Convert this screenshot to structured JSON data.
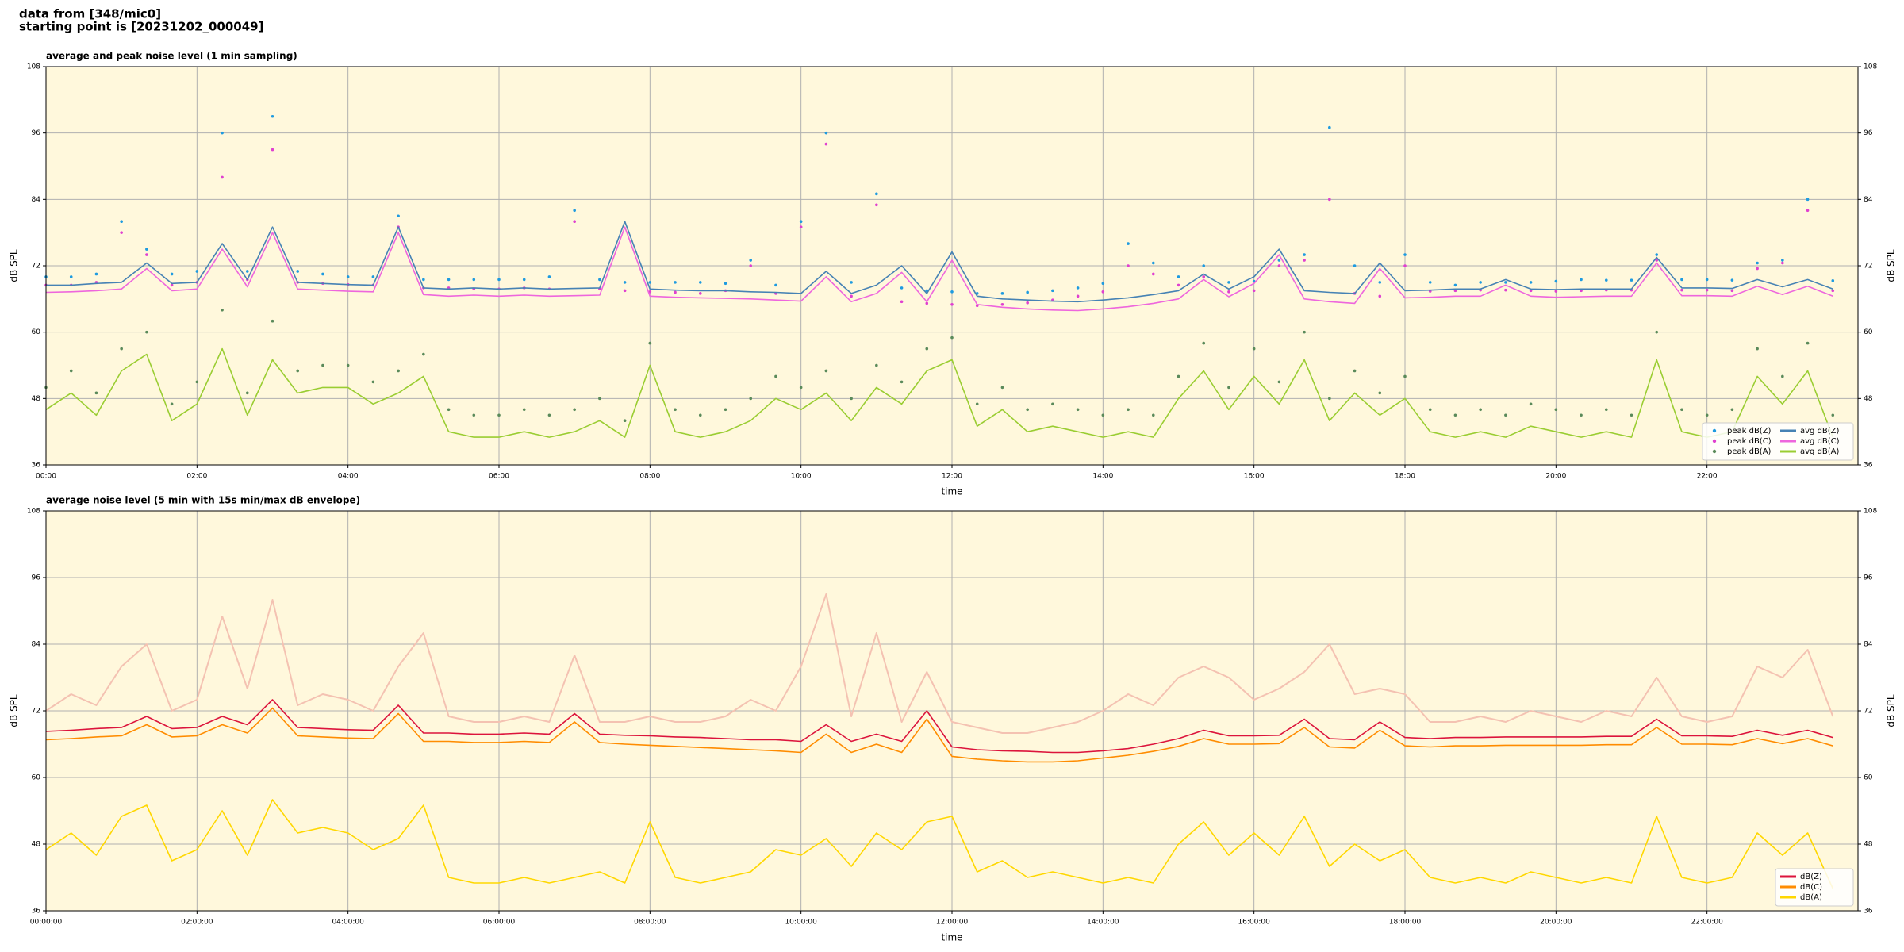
{
  "header": [
    "data from [348/mic0]",
    "starting point is [20231202_000049]"
  ],
  "chart_data": [
    {
      "type": "line",
      "title": "average and peak noise level (1 min sampling)",
      "x_label": "time",
      "y_label": "dB SPL",
      "background": "#fff8dc",
      "grid": true,
      "legend": "lower right",
      "legend_columns": 2,
      "xlim": [
        0,
        1440
      ],
      "xticks": [
        {
          "value": 0,
          "label": "00:00"
        },
        {
          "value": 120,
          "label": "02:00"
        },
        {
          "value": 240,
          "label": "04:00"
        },
        {
          "value": 360,
          "label": "06:00"
        },
        {
          "value": 480,
          "label": "08:00"
        },
        {
          "value": 600,
          "label": "10:00"
        },
        {
          "value": 720,
          "label": "12:00"
        },
        {
          "value": 840,
          "label": "14:00"
        },
        {
          "value": 960,
          "label": "16:00"
        },
        {
          "value": 1080,
          "label": "18:00"
        },
        {
          "value": 1200,
          "label": "20:00"
        },
        {
          "value": 1320,
          "label": "22:00"
        }
      ],
      "ylim": [
        36,
        108
      ],
      "yticks": [
        36,
        48,
        60,
        72,
        84,
        96,
        108
      ],
      "x": [
        0,
        20,
        40,
        60,
        80,
        100,
        120,
        140,
        160,
        180,
        200,
        220,
        240,
        260,
        280,
        300,
        320,
        340,
        360,
        380,
        400,
        420,
        440,
        460,
        480,
        500,
        520,
        540,
        560,
        580,
        600,
        620,
        640,
        660,
        680,
        700,
        720,
        740,
        760,
        780,
        800,
        820,
        840,
        860,
        880,
        900,
        920,
        940,
        960,
        980,
        1000,
        1020,
        1040,
        1060,
        1080,
        1100,
        1120,
        1140,
        1160,
        1180,
        1200,
        1220,
        1240,
        1260,
        1280,
        1300,
        1320,
        1340,
        1360,
        1380,
        1400,
        1420
      ],
      "series": [
        {
          "name": "peak dB(Z)",
          "type": "scatter",
          "color": "#1e9be0",
          "values": [
            70,
            70,
            70.5,
            80,
            75,
            70.5,
            71,
            96,
            71,
            99,
            71,
            70.5,
            70,
            70,
            81,
            69.5,
            69.5,
            69.5,
            69.5,
            69.5,
            70,
            82,
            69.5,
            69,
            69,
            69,
            69,
            68.8,
            73,
            68.5,
            80,
            96,
            69,
            85,
            68,
            67.5,
            67.3,
            67,
            67,
            67.2,
            67.5,
            68,
            68.8,
            76,
            72.5,
            70,
            72,
            69,
            69.2,
            73,
            74,
            97,
            72,
            69,
            74,
            69,
            68.5,
            69,
            69,
            69,
            69.2,
            69.5,
            69.4,
            69.4,
            74,
            69.5,
            69.5,
            69.4,
            72.5,
            73,
            84,
            69.3
          ]
        },
        {
          "name": "peak dB(C)",
          "type": "scatter",
          "color": "#e040d0",
          "values": [
            68.5,
            68.5,
            69,
            78,
            74,
            68.5,
            69,
            88,
            69.5,
            93,
            69,
            68.8,
            68.6,
            68.5,
            79,
            68,
            68,
            67.8,
            67.8,
            68,
            67.8,
            80,
            67.8,
            67.5,
            67.3,
            67.2,
            67,
            67.5,
            72,
            67,
            79,
            94,
            66.5,
            83,
            65.5,
            65.2,
            65,
            64.8,
            65,
            65.3,
            65.8,
            66.5,
            67.3,
            72,
            70.5,
            68.5,
            70,
            67.3,
            67.5,
            72,
            73,
            84,
            67,
            66.5,
            72,
            67.4,
            67.5,
            67.6,
            67.6,
            67.5,
            67.4,
            67.5,
            67.6,
            67.6,
            73,
            67.6,
            67.6,
            67.5,
            71.5,
            72.5,
            82,
            67.5
          ]
        },
        {
          "name": "peak dB(A)",
          "type": "scatter",
          "color": "#5a8a5a",
          "values": [
            50,
            53,
            49,
            57,
            60,
            47,
            51,
            64,
            49,
            62,
            53,
            54,
            54,
            51,
            53,
            56,
            46,
            45,
            45,
            46,
            45,
            46,
            48,
            44,
            58,
            46,
            45,
            46,
            48,
            52,
            50,
            53,
            48,
            54,
            51,
            57,
            59,
            47,
            50,
            46,
            47,
            46,
            45,
            46,
            45,
            52,
            58,
            50,
            57,
            51,
            60,
            48,
            53,
            49,
            52,
            46,
            45,
            46,
            45,
            47,
            46,
            45,
            46,
            45,
            60,
            46,
            45,
            46,
            57,
            52,
            58,
            45
          ]
        },
        {
          "name": "avg dB(Z)",
          "type": "line",
          "color": "#4682b4",
          "values": [
            68.5,
            68.5,
            68.8,
            69,
            72.5,
            68.8,
            69,
            76,
            69.5,
            79,
            69,
            68.8,
            68.6,
            68.5,
            79,
            68,
            67.8,
            68,
            67.8,
            68,
            67.8,
            67.9,
            68,
            80,
            67.8,
            67.6,
            67.5,
            67.5,
            67.3,
            67.2,
            67,
            71,
            67,
            68.5,
            72,
            67,
            74.5,
            66.5,
            66,
            65.8,
            65.6,
            65.5,
            65.8,
            66.2,
            66.8,
            67.5,
            70.5,
            67.8,
            70,
            75,
            67.5,
            67.2,
            67,
            72.5,
            67.5,
            67.6,
            67.8,
            67.8,
            69.5,
            67.8,
            67.7,
            67.8,
            67.8,
            67.8,
            73.5,
            68,
            68,
            67.9,
            69.5,
            68.2,
            69.5,
            67.8
          ]
        },
        {
          "name": "avg dB(C)",
          "type": "line",
          "color": "#ee66dd",
          "values": [
            67.2,
            67.3,
            67.5,
            67.8,
            71.5,
            67.5,
            67.8,
            75,
            68.2,
            78,
            67.8,
            67.6,
            67.4,
            67.3,
            78,
            66.8,
            66.5,
            66.7,
            66.5,
            66.7,
            66.5,
            66.6,
            66.7,
            79,
            66.5,
            66.3,
            66.2,
            66.1,
            66,
            65.8,
            65.6,
            70,
            65.5,
            67,
            70.8,
            65.5,
            73,
            65,
            64.5,
            64.2,
            64,
            63.9,
            64.2,
            64.6,
            65.2,
            66,
            69.5,
            66.4,
            68.8,
            74,
            66,
            65.5,
            65.2,
            71.5,
            66.2,
            66.3,
            66.5,
            66.5,
            68.5,
            66.5,
            66.3,
            66.4,
            66.5,
            66.5,
            72.5,
            66.6,
            66.6,
            66.5,
            68.3,
            66.8,
            68.3,
            66.5
          ]
        },
        {
          "name": "avg dB(A)",
          "type": "line",
          "color": "#9acd32",
          "values": [
            46,
            49,
            45,
            53,
            56,
            44,
            47,
            57,
            45,
            55,
            49,
            50,
            50,
            47,
            49,
            52,
            42,
            41,
            41,
            42,
            41,
            42,
            44,
            41,
            54,
            42,
            41,
            42,
            44,
            48,
            46,
            49,
            44,
            50,
            47,
            53,
            55,
            43,
            46,
            42,
            43,
            42,
            41,
            42,
            41,
            48,
            53,
            46,
            52,
            47,
            55,
            44,
            49,
            45,
            48,
            42,
            41,
            42,
            41,
            43,
            42,
            41,
            42,
            41,
            55,
            42,
            41,
            42,
            52,
            47,
            53,
            41
          ]
        }
      ]
    },
    {
      "type": "line",
      "title": "average noise level (5 min with 15s min/max dB envelope)",
      "x_label": "time",
      "y_label": "dB SPL",
      "background": "#fff8dc",
      "grid": true,
      "legend": "lower right",
      "legend_columns": 1,
      "xlim": [
        0,
        1440
      ],
      "xticks": [
        {
          "value": 0,
          "label": "00:00:00"
        },
        {
          "value": 120,
          "label": "02:00:00"
        },
        {
          "value": 240,
          "label": "04:00:00"
        },
        {
          "value": 360,
          "label": "06:00:00"
        },
        {
          "value": 480,
          "label": "08:00:00"
        },
        {
          "value": 600,
          "label": "10:00:00"
        },
        {
          "value": 720,
          "label": "12:00:00"
        },
        {
          "value": 840,
          "label": "14:00:00"
        },
        {
          "value": 960,
          "label": "16:00:00"
        },
        {
          "value": 1080,
          "label": "18:00:00"
        },
        {
          "value": 1200,
          "label": "20:00:00"
        },
        {
          "value": 1320,
          "label": "22:00:00"
        }
      ],
      "ylim": [
        36,
        108
      ],
      "yticks": [
        36,
        48,
        60,
        72,
        84,
        96,
        108
      ],
      "x": [
        0,
        20,
        40,
        60,
        80,
        100,
        120,
        140,
        160,
        180,
        200,
        220,
        240,
        260,
        280,
        300,
        320,
        340,
        360,
        380,
        400,
        420,
        440,
        460,
        480,
        500,
        520,
        540,
        560,
        580,
        600,
        620,
        640,
        660,
        680,
        700,
        720,
        740,
        760,
        780,
        800,
        820,
        840,
        860,
        880,
        900,
        920,
        940,
        960,
        980,
        1000,
        1020,
        1040,
        1060,
        1080,
        1100,
        1120,
        1140,
        1160,
        1180,
        1200,
        1220,
        1240,
        1260,
        1280,
        1300,
        1320,
        1340,
        1360,
        1380,
        1400,
        1420
      ],
      "envelope": {
        "color": "#f4c2b2",
        "values": [
          72,
          75,
          73,
          80,
          84,
          72,
          74,
          89,
          76,
          92,
          73,
          75,
          74,
          72,
          80,
          86,
          71,
          70,
          70,
          71,
          70,
          82,
          70,
          70,
          71,
          70,
          70,
          71,
          74,
          72,
          80,
          93,
          71,
          86,
          70,
          79,
          70,
          69,
          68,
          68,
          69,
          70,
          72,
          75,
          73,
          78,
          80,
          78,
          74,
          76,
          79,
          84,
          75,
          76,
          75,
          70,
          70,
          71,
          70,
          72,
          71,
          70,
          72,
          71,
          78,
          71,
          70,
          71,
          80,
          78,
          83,
          71
        ]
      },
      "series": [
        {
          "name": "dB(Z)",
          "type": "line",
          "color": "#dc143c",
          "values": [
            68.3,
            68.5,
            68.8,
            69,
            71,
            68.8,
            69,
            71,
            69.5,
            74,
            69,
            68.8,
            68.6,
            68.5,
            73,
            68,
            68,
            67.8,
            67.8,
            68,
            67.8,
            71.5,
            67.8,
            67.6,
            67.5,
            67.3,
            67.2,
            67,
            66.8,
            66.8,
            66.5,
            69.5,
            66.5,
            67.8,
            66.5,
            72,
            65.5,
            65,
            64.8,
            64.7,
            64.5,
            64.5,
            64.8,
            65.2,
            66,
            67,
            68.5,
            67.5,
            67.5,
            67.6,
            70.5,
            67,
            66.8,
            70,
            67.2,
            67,
            67.2,
            67.2,
            67.3,
            67.3,
            67.3,
            67.3,
            67.4,
            67.4,
            70.5,
            67.5,
            67.5,
            67.4,
            68.5,
            67.6,
            68.5,
            67.2
          ]
        },
        {
          "name": "dB(C)",
          "type": "line",
          "color": "#ff8c00",
          "values": [
            66.8,
            67,
            67.3,
            67.5,
            69.5,
            67.3,
            67.5,
            69.5,
            68,
            72.5,
            67.5,
            67.3,
            67.1,
            67,
            71.5,
            66.5,
            66.5,
            66.3,
            66.3,
            66.5,
            66.3,
            70,
            66.3,
            66,
            65.8,
            65.6,
            65.4,
            65.2,
            65,
            64.8,
            64.5,
            67.8,
            64.5,
            66,
            64.5,
            70.5,
            63.8,
            63.3,
            63,
            62.8,
            62.8,
            63,
            63.5,
            64,
            64.7,
            65.6,
            67,
            66,
            66,
            66.1,
            69,
            65.5,
            65.3,
            68.5,
            65.7,
            65.5,
            65.7,
            65.7,
            65.8,
            65.8,
            65.8,
            65.8,
            65.9,
            65.9,
            69,
            66,
            66,
            65.9,
            67,
            66.1,
            67,
            65.7
          ]
        },
        {
          "name": "dB(A)",
          "type": "line",
          "color": "#ffd700",
          "values": [
            47,
            50,
            46,
            53,
            55,
            45,
            47,
            54,
            46,
            56,
            50,
            51,
            50,
            47,
            49,
            55,
            42,
            41,
            41,
            42,
            41,
            42,
            43,
            41,
            52,
            42,
            41,
            42,
            43,
            47,
            46,
            49,
            44,
            50,
            47,
            52,
            53,
            43,
            45,
            42,
            43,
            42,
            41,
            42,
            41,
            48,
            52,
            46,
            50,
            46,
            53,
            44,
            48,
            45,
            47,
            42,
            41,
            42,
            41,
            43,
            42,
            41,
            42,
            41,
            53,
            42,
            41,
            42,
            50,
            46,
            50,
            40
          ]
        }
      ]
    }
  ]
}
